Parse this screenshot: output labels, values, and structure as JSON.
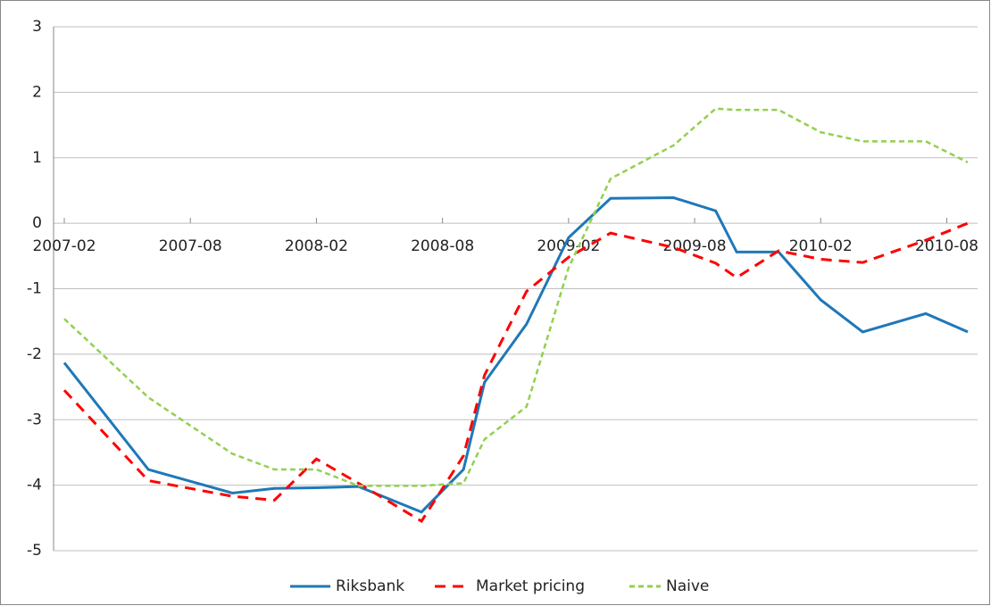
{
  "chart_data": {
    "type": "line",
    "x": [
      "2007-02",
      "2007-06",
      "2007-10",
      "2007-12",
      "2008-02",
      "2008-04",
      "2008-07",
      "2008-09",
      "2008-10",
      "2008-12",
      "2009-02",
      "2009-04",
      "2009-07",
      "2009-09",
      "2009-10",
      "2009-12",
      "2010-02",
      "2010-04",
      "2010-07",
      "2010-09"
    ],
    "series": [
      {
        "name": "Riksbank",
        "color": "#1f78b8",
        "dash": "solid",
        "values": [
          -2.13,
          -3.76,
          -4.12,
          -4.05,
          -4.04,
          -4.02,
          -4.41,
          -3.76,
          -2.43,
          -1.54,
          -0.22,
          0.38,
          0.39,
          0.19,
          -0.44,
          -0.44,
          -1.17,
          -1.66,
          -1.38,
          -1.66
        ]
      },
      {
        "name": "Market pricing",
        "color": "#ff0000",
        "dash": "dashed",
        "values": [
          -2.55,
          -3.93,
          -4.17,
          -4.23,
          -3.6,
          -3.97,
          -4.55,
          -3.55,
          -2.32,
          -1.04,
          -0.52,
          -0.15,
          -0.37,
          -0.61,
          -0.83,
          -0.42,
          -0.55,
          -0.6,
          -0.26,
          0
        ]
      },
      {
        "name": "Naive",
        "color": "#92d050",
        "dash": "dotted",
        "values": [
          -1.46,
          -2.66,
          -3.52,
          -3.76,
          -3.76,
          -4.01,
          -4.01,
          -3.97,
          -3.3,
          -2.8,
          -0.68,
          0.68,
          1.19,
          1.75,
          1.73,
          1.73,
          1.39,
          1.25,
          1.25,
          0.93
        ]
      }
    ],
    "xlim": [
      "2007-02",
      "2010-09"
    ],
    "xticks": [
      "2007-02",
      "2007-08",
      "2008-02",
      "2008-08",
      "2009-02",
      "2009-08",
      "2010-02",
      "2010-08"
    ],
    "ylim": [
      -5,
      3
    ],
    "yticks": [
      -5,
      -4,
      -3,
      -2,
      -1,
      0,
      1,
      2,
      3
    ],
    "grid": true,
    "legend": "bottom"
  }
}
